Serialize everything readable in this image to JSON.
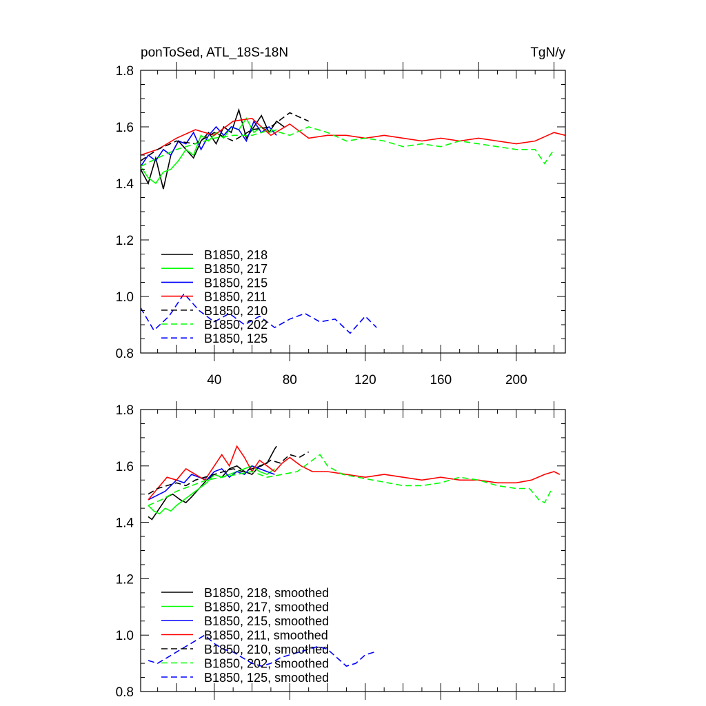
{
  "figure": {
    "title_left": "ponToSed, ATL_18S-18N",
    "title_right": "TgN/y"
  },
  "chart_data": [
    {
      "type": "line",
      "title": "ponToSed, ATL_18S-18N",
      "units": "TgN/y",
      "xlim": [
        1,
        226
      ],
      "ylim": [
        0.8,
        1.8
      ],
      "xticks": [
        40,
        80,
        120,
        160,
        200
      ],
      "yticks": [
        0.8,
        1.0,
        1.2,
        1.4,
        1.6,
        1.8
      ],
      "ytick_labels": [
        "0.8",
        "1.0",
        "1.2",
        "1.4",
        "1.6",
        "1.8"
      ],
      "xtick_labels_shown": true,
      "legend_position": "lower-left",
      "series": [
        {
          "name": "B1850, 218",
          "color": "#000000",
          "dash": "solid",
          "x": [
            1,
            5,
            9,
            13,
            17,
            21,
            25,
            29,
            33,
            37,
            41,
            45,
            49,
            53,
            57,
            61,
            65,
            69,
            73,
            77
          ],
          "y": [
            1.45,
            1.4,
            1.49,
            1.38,
            1.5,
            1.55,
            1.52,
            1.49,
            1.55,
            1.58,
            1.54,
            1.6,
            1.58,
            1.66,
            1.56,
            1.6,
            1.64,
            1.58,
            1.62,
            1.6
          ]
        },
        {
          "name": "B1850, 217",
          "color": "#00ff00",
          "dash": "solid",
          "x": [
            1,
            5,
            9,
            13,
            17,
            21,
            25,
            29,
            33,
            37,
            41,
            45,
            49,
            53,
            57,
            61,
            65,
            69,
            73
          ],
          "y": [
            1.46,
            1.42,
            1.4,
            1.44,
            1.45,
            1.48,
            1.52,
            1.5,
            1.57,
            1.55,
            1.58,
            1.56,
            1.6,
            1.59,
            1.63,
            1.58,
            1.6,
            1.58,
            1.59
          ]
        },
        {
          "name": "B1850, 215",
          "color": "#0000ff",
          "dash": "solid",
          "x": [
            1,
            5,
            9,
            13,
            17,
            21,
            25,
            29,
            33,
            37,
            41,
            45,
            49,
            53,
            57,
            61,
            65,
            69,
            73
          ],
          "y": [
            1.46,
            1.5,
            1.48,
            1.52,
            1.5,
            1.55,
            1.54,
            1.58,
            1.52,
            1.57,
            1.6,
            1.57,
            1.6,
            1.59,
            1.55,
            1.62,
            1.58,
            1.6,
            1.57
          ]
        },
        {
          "name": "B1850, 211",
          "color": "#ff0000",
          "dash": "solid",
          "x": [
            1,
            10,
            20,
            30,
            40,
            50,
            60,
            70,
            80,
            90,
            100,
            110,
            120,
            130,
            140,
            150,
            160,
            170,
            180,
            190,
            200,
            210,
            220,
            226
          ],
          "y": [
            1.5,
            1.52,
            1.56,
            1.59,
            1.57,
            1.62,
            1.63,
            1.57,
            1.61,
            1.56,
            1.57,
            1.57,
            1.56,
            1.57,
            1.56,
            1.55,
            1.56,
            1.55,
            1.56,
            1.55,
            1.54,
            1.55,
            1.58,
            1.57
          ]
        },
        {
          "name": "B1850, 210",
          "color": "#000000",
          "dash": "dashed",
          "x": [
            1,
            10,
            20,
            30,
            40,
            50,
            60,
            70,
            80,
            90
          ],
          "y": [
            1.48,
            1.52,
            1.55,
            1.54,
            1.58,
            1.55,
            1.59,
            1.6,
            1.65,
            1.62
          ]
        },
        {
          "name": "B1850, 202",
          "color": "#00ff00",
          "dash": "dashed",
          "x": [
            1,
            10,
            20,
            30,
            40,
            50,
            60,
            70,
            80,
            90,
            100,
            110,
            120,
            130,
            140,
            150,
            160,
            170,
            180,
            190,
            200,
            210,
            215,
            220
          ],
          "y": [
            1.46,
            1.49,
            1.52,
            1.54,
            1.56,
            1.57,
            1.57,
            1.59,
            1.57,
            1.6,
            1.58,
            1.55,
            1.56,
            1.55,
            1.53,
            1.54,
            1.53,
            1.55,
            1.54,
            1.53,
            1.52,
            1.52,
            1.47,
            1.52
          ]
        },
        {
          "name": "B1850, 125",
          "color": "#0000ff",
          "dash": "dashed",
          "x": [
            1,
            8,
            16,
            24,
            32,
            40,
            48,
            56,
            64,
            72,
            80,
            88,
            96,
            104,
            112,
            120,
            126
          ],
          "y": [
            0.96,
            0.88,
            0.93,
            1.01,
            0.95,
            0.91,
            0.94,
            0.9,
            0.93,
            0.89,
            0.92,
            0.94,
            0.91,
            0.92,
            0.87,
            0.93,
            0.89
          ]
        }
      ]
    },
    {
      "type": "line",
      "xlim": [
        1,
        226
      ],
      "ylim": [
        0.8,
        1.8
      ],
      "xticks": [
        40,
        80,
        120,
        160,
        200
      ],
      "yticks": [
        0.8,
        1.0,
        1.2,
        1.4,
        1.6,
        1.8
      ],
      "ytick_labels": [
        "0.8",
        "1.0",
        "1.2",
        "1.4",
        "1.6",
        "1.8"
      ],
      "xtick_labels_shown": false,
      "legend_position": "lower-left",
      "series": [
        {
          "name": "B1850, 218, smoothed",
          "color": "#000000",
          "dash": "solid",
          "x": [
            5,
            7,
            9,
            12,
            15,
            18,
            22,
            25,
            28,
            32,
            36,
            40,
            44,
            48,
            52,
            56,
            60,
            64,
            68,
            72,
            73
          ],
          "y": [
            1.42,
            1.41,
            1.43,
            1.46,
            1.49,
            1.5,
            1.48,
            1.47,
            1.49,
            1.52,
            1.55,
            1.57,
            1.56,
            1.59,
            1.6,
            1.58,
            1.57,
            1.6,
            1.61,
            1.66,
            1.67
          ]
        },
        {
          "name": "B1850, 217, smoothed",
          "color": "#00ff00",
          "dash": "solid",
          "x": [
            5,
            8,
            11,
            14,
            17,
            20,
            24,
            28,
            32,
            36,
            40,
            44,
            48,
            52,
            56,
            60,
            64,
            68,
            72
          ],
          "y": [
            1.46,
            1.44,
            1.43,
            1.45,
            1.44,
            1.46,
            1.48,
            1.5,
            1.52,
            1.54,
            1.57,
            1.56,
            1.57,
            1.58,
            1.59,
            1.6,
            1.58,
            1.57,
            1.59
          ]
        },
        {
          "name": "B1850, 215, smoothed",
          "color": "#0000ff",
          "dash": "solid",
          "x": [
            5,
            8,
            11,
            14,
            17,
            20,
            24,
            28,
            32,
            36,
            40,
            44,
            48,
            52,
            56,
            60,
            64,
            68,
            72
          ],
          "y": [
            1.48,
            1.49,
            1.5,
            1.51,
            1.53,
            1.55,
            1.54,
            1.57,
            1.56,
            1.55,
            1.58,
            1.59,
            1.56,
            1.58,
            1.57,
            1.6,
            1.59,
            1.58,
            1.57
          ]
        },
        {
          "name": "B1850, 211, smoothed",
          "color": "#ff0000",
          "dash": "solid",
          "x": [
            5,
            10,
            15,
            20,
            25,
            30,
            35,
            40,
            44,
            48,
            52,
            56,
            60,
            64,
            68,
            72,
            76,
            80,
            86,
            92,
            100,
            110,
            120,
            130,
            140,
            150,
            160,
            170,
            180,
            190,
            200,
            208,
            215,
            220,
            223
          ],
          "y": [
            1.48,
            1.52,
            1.56,
            1.55,
            1.59,
            1.57,
            1.55,
            1.6,
            1.64,
            1.6,
            1.67,
            1.63,
            1.58,
            1.62,
            1.6,
            1.58,
            1.61,
            1.63,
            1.6,
            1.58,
            1.58,
            1.57,
            1.56,
            1.57,
            1.56,
            1.55,
            1.56,
            1.55,
            1.55,
            1.54,
            1.54,
            1.55,
            1.57,
            1.58,
            1.57
          ]
        },
        {
          "name": "B1850, 210, smoothed",
          "color": "#000000",
          "dash": "dashed",
          "x": [
            5,
            10,
            15,
            20,
            25,
            30,
            35,
            40,
            45,
            50,
            55,
            60,
            65,
            70,
            75,
            80,
            85,
            90
          ],
          "y": [
            1.5,
            1.52,
            1.53,
            1.54,
            1.53,
            1.55,
            1.56,
            1.57,
            1.58,
            1.59,
            1.58,
            1.59,
            1.6,
            1.62,
            1.61,
            1.64,
            1.63,
            1.65
          ]
        },
        {
          "name": "B1850, 202, smoothed",
          "color": "#00ff00",
          "dash": "dashed",
          "x": [
            5,
            12,
            20,
            28,
            36,
            44,
            52,
            60,
            68,
            76,
            84,
            92,
            96,
            100,
            108,
            116,
            124,
            132,
            140,
            150,
            160,
            170,
            180,
            190,
            200,
            207,
            212,
            215,
            219
          ],
          "y": [
            1.46,
            1.48,
            1.51,
            1.53,
            1.55,
            1.56,
            1.57,
            1.58,
            1.56,
            1.57,
            1.58,
            1.62,
            1.64,
            1.6,
            1.57,
            1.56,
            1.55,
            1.54,
            1.53,
            1.53,
            1.54,
            1.56,
            1.55,
            1.53,
            1.52,
            1.52,
            1.48,
            1.47,
            1.52
          ]
        },
        {
          "name": "B1850, 125, smoothed",
          "color": "#0000ff",
          "dash": "dashed",
          "x": [
            5,
            10,
            15,
            20,
            25,
            30,
            35,
            40,
            45,
            50,
            55,
            60,
            65,
            70,
            75,
            80,
            85,
            90,
            95,
            100,
            105,
            110,
            115,
            120,
            125
          ],
          "y": [
            0.91,
            0.9,
            0.92,
            0.94,
            0.96,
            0.98,
            1.0,
            0.97,
            0.95,
            0.94,
            0.92,
            0.9,
            0.89,
            0.9,
            0.92,
            0.93,
            0.94,
            0.95,
            0.96,
            0.95,
            0.92,
            0.89,
            0.9,
            0.93,
            0.94
          ]
        }
      ]
    }
  ]
}
